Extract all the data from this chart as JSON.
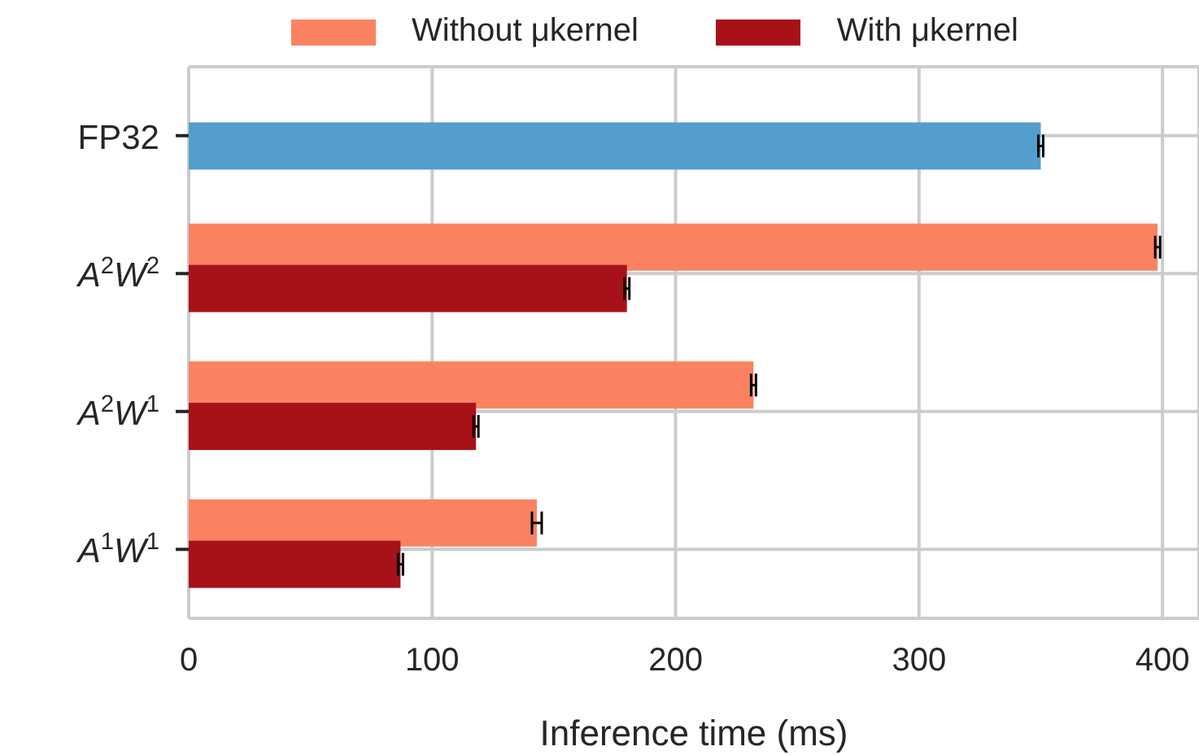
{
  "chart_data": {
    "type": "bar",
    "orientation": "horizontal",
    "categories": [
      "FP32",
      "A$^{2}$W$^{2}$",
      "A$^{2}$W$^{1}$",
      "A$^{1}$W$^{1}$"
    ],
    "series": [
      {
        "color": "#539ecd",
        "values": [
          350,
          null,
          null,
          null
        ],
        "errors": [
          1,
          null,
          null,
          null
        ]
      },
      {
        "name": "Without μkernel",
        "color": "#fb8261",
        "values": [
          null,
          398,
          232,
          143
        ],
        "errors": [
          null,
          1,
          1,
          2
        ]
      },
      {
        "name": "With μkernel",
        "color": "#a91119",
        "values": [
          null,
          180,
          118,
          87
        ],
        "errors": [
          null,
          1,
          1,
          1
        ]
      }
    ],
    "xlabel": "Inference time (ms)",
    "xlim": [
      0,
      415
    ],
    "xticks": [
      0,
      100,
      200,
      300,
      400
    ],
    "grid": true,
    "legend": "top"
  }
}
